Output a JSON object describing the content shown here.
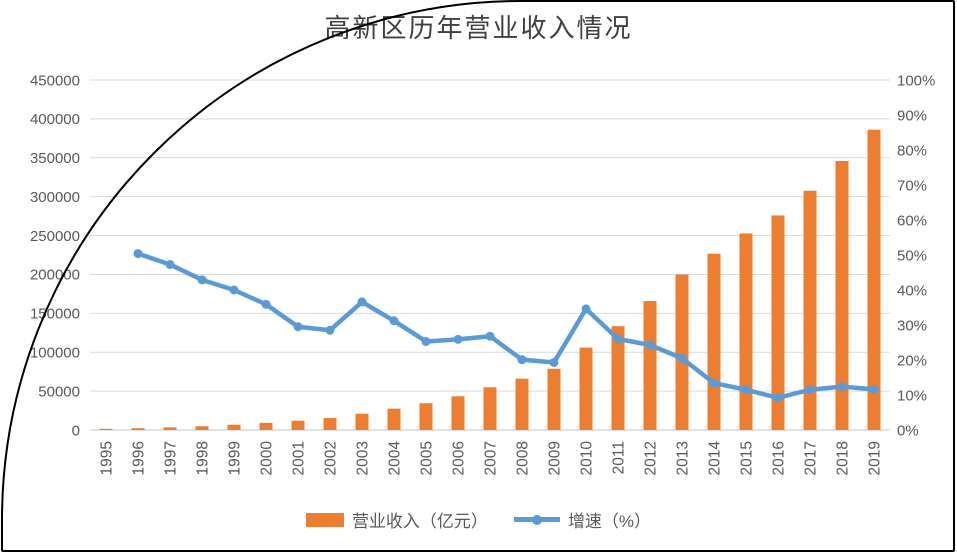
{
  "title": "高新区历年营业收入情况",
  "colors": {
    "bar": "#ED7D31",
    "line": "#5B9BD5",
    "grid": "#D9D9D9",
    "baseline": "#C6C6C6",
    "axis_text": "#595959",
    "title_text": "#404040",
    "frame": "#000000",
    "background": "#FFFFFF"
  },
  "legend": {
    "revenue_label": "营业收入（亿元）",
    "growth_label": "增速（%）"
  },
  "chart_data": {
    "type": "bar",
    "subtype": "combo-bar-line-dual-axis",
    "title": "高新区历年营业收入情况",
    "xlabel": "",
    "ylabel_left": "营业收入（亿元）",
    "ylabel_right": "增速（%）",
    "grid": true,
    "legend_position": "bottom",
    "categories": [
      "1995",
      "1996",
      "1997",
      "1998",
      "1999",
      "2000",
      "2001",
      "2002",
      "2003",
      "2004",
      "2005",
      "2006",
      "2007",
      "2008",
      "2009",
      "2010",
      "2011",
      "2012",
      "2013",
      "2014",
      "2015",
      "2016",
      "2017",
      "2018",
      "2019"
    ],
    "series": [
      {
        "name": "营业收入（亿元）",
        "type": "bar",
        "axis": "left",
        "values": [
          1529,
          2300,
          3388,
          4840,
          6775,
          9209,
          11928,
          15327,
          20939,
          27466,
          34416,
          43320,
          54926,
          65986,
          78707,
          105917,
          133444,
          165845,
          199903,
          226689,
          252663,
          275850,
          307623,
          345893,
          386073
        ]
      },
      {
        "name": "增速（%）",
        "type": "line",
        "axis": "right",
        "values": [
          null,
          50.4,
          47.3,
          42.9,
          40.0,
          35.9,
          29.5,
          28.5,
          36.6,
          31.2,
          25.3,
          25.9,
          26.8,
          20.1,
          19.3,
          34.6,
          26.0,
          24.3,
          20.5,
          13.4,
          11.5,
          9.2,
          11.5,
          12.4,
          11.6
        ]
      }
    ],
    "left_axis": {
      "min": 0,
      "max": 450000,
      "step": 50000,
      "tick_labels": [
        "0",
        "50000",
        "100000",
        "150000",
        "200000",
        "250000",
        "300000",
        "350000",
        "400000",
        "450000"
      ]
    },
    "right_axis": {
      "min": 0,
      "max": 100,
      "step": 10,
      "unit": "%",
      "tick_labels": [
        "0%",
        "10%",
        "20%",
        "30%",
        "40%",
        "50%",
        "60%",
        "70%",
        "80%",
        "90%",
        "100%"
      ]
    }
  }
}
